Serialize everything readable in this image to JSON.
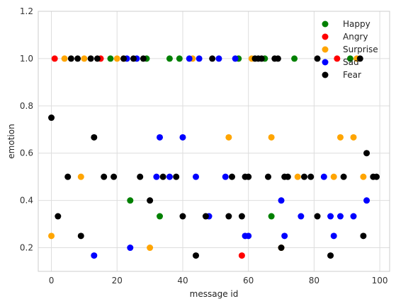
{
  "chart_data": {
    "type": "scatter",
    "xlabel": "message id",
    "ylabel": "emotion",
    "xlim": [
      -4,
      103
    ],
    "ylim": [
      0.1,
      1.2
    ],
    "xticks": [
      0,
      20,
      40,
      60,
      80,
      100
    ],
    "yticks": [
      0.2,
      0.4,
      0.6,
      0.8,
      1.0,
      1.2
    ],
    "xtick_labels": [
      "0",
      "20",
      "40",
      "60",
      "80",
      "100"
    ],
    "ytick_labels": [
      "0.2",
      "0.4",
      "0.6",
      "0.8",
      "1.0",
      "1.2"
    ],
    "grid": true,
    "legend_position": "top-right",
    "series": [
      {
        "name": "Happy",
        "color": "#008000",
        "points": [
          [
            18,
            1.0
          ],
          [
            29,
            1.0
          ],
          [
            36,
            1.0
          ],
          [
            39,
            1.0
          ],
          [
            57,
            1.0
          ],
          [
            65,
            1.0
          ],
          [
            74,
            1.0
          ],
          [
            91,
            1.0
          ],
          [
            24,
            0.4
          ],
          [
            33,
            0.333
          ],
          [
            67,
            0.333
          ]
        ]
      },
      {
        "name": "Angry",
        "color": "#ff0000",
        "points": [
          [
            1,
            1.0
          ],
          [
            15,
            1.0
          ],
          [
            87,
            1.0
          ],
          [
            58,
            0.167
          ]
        ]
      },
      {
        "name": "Surprise",
        "color": "#ffa500",
        "points": [
          [
            4,
            1.0
          ],
          [
            10,
            1.0
          ],
          [
            20,
            1.0
          ],
          [
            22,
            1.0
          ],
          [
            43,
            1.0
          ],
          [
            61,
            1.0
          ],
          [
            93,
            1.0
          ],
          [
            9,
            0.5
          ],
          [
            54,
            0.667
          ],
          [
            67,
            0.667
          ],
          [
            75,
            0.5
          ],
          [
            86,
            0.5
          ],
          [
            88,
            0.667
          ],
          [
            92,
            0.667
          ],
          [
            95,
            0.5
          ],
          [
            0,
            0.25
          ],
          [
            30,
            0.2
          ],
          [
            70,
            0.2
          ]
        ]
      },
      {
        "name": "Sad",
        "color": "#0000ff",
        "points": [
          [
            23,
            1.0
          ],
          [
            26,
            1.0
          ],
          [
            42,
            1.0
          ],
          [
            45,
            1.0
          ],
          [
            51,
            1.0
          ],
          [
            56,
            1.0
          ],
          [
            33,
            0.667
          ],
          [
            40,
            0.667
          ],
          [
            32,
            0.5
          ],
          [
            36,
            0.5
          ],
          [
            44,
            0.5
          ],
          [
            53,
            0.5
          ],
          [
            83,
            0.5
          ],
          [
            70,
            0.4
          ],
          [
            96,
            0.4
          ],
          [
            48,
            0.333
          ],
          [
            59,
            0.25
          ],
          [
            60,
            0.25
          ],
          [
            71,
            0.25
          ],
          [
            76,
            0.333
          ],
          [
            85,
            0.333
          ],
          [
            88,
            0.333
          ],
          [
            92,
            0.333
          ],
          [
            13,
            0.167
          ],
          [
            24,
            0.2
          ],
          [
            86,
            0.25
          ]
        ]
      },
      {
        "name": "Fear",
        "color": "#000000",
        "points": [
          [
            6,
            1.0
          ],
          [
            8,
            1.0
          ],
          [
            12,
            1.0
          ],
          [
            14,
            1.0
          ],
          [
            22,
            1.0
          ],
          [
            25,
            1.0
          ],
          [
            28,
            1.0
          ],
          [
            49,
            1.0
          ],
          [
            62,
            1.0
          ],
          [
            63,
            1.0
          ],
          [
            64,
            1.0
          ],
          [
            68,
            1.0
          ],
          [
            69,
            1.0
          ],
          [
            81,
            1.0
          ],
          [
            94,
            1.0
          ],
          [
            0,
            0.75
          ],
          [
            13,
            0.667
          ],
          [
            96,
            0.6
          ],
          [
            5,
            0.5
          ],
          [
            16,
            0.5
          ],
          [
            19,
            0.5
          ],
          [
            27,
            0.5
          ],
          [
            34,
            0.5
          ],
          [
            38,
            0.5
          ],
          [
            55,
            0.5
          ],
          [
            59,
            0.5
          ],
          [
            60,
            0.5
          ],
          [
            66,
            0.5
          ],
          [
            71,
            0.5
          ],
          [
            72,
            0.5
          ],
          [
            77,
            0.5
          ],
          [
            79,
            0.5
          ],
          [
            89,
            0.5
          ],
          [
            98,
            0.5
          ],
          [
            99,
            0.5
          ],
          [
            30,
            0.4
          ],
          [
            2,
            0.333
          ],
          [
            40,
            0.333
          ],
          [
            47,
            0.333
          ],
          [
            54,
            0.333
          ],
          [
            58,
            0.333
          ],
          [
            81,
            0.333
          ],
          [
            9,
            0.25
          ],
          [
            95,
            0.25
          ],
          [
            44,
            0.167
          ],
          [
            85,
            0.167
          ],
          [
            70,
            0.2
          ]
        ]
      }
    ]
  }
}
